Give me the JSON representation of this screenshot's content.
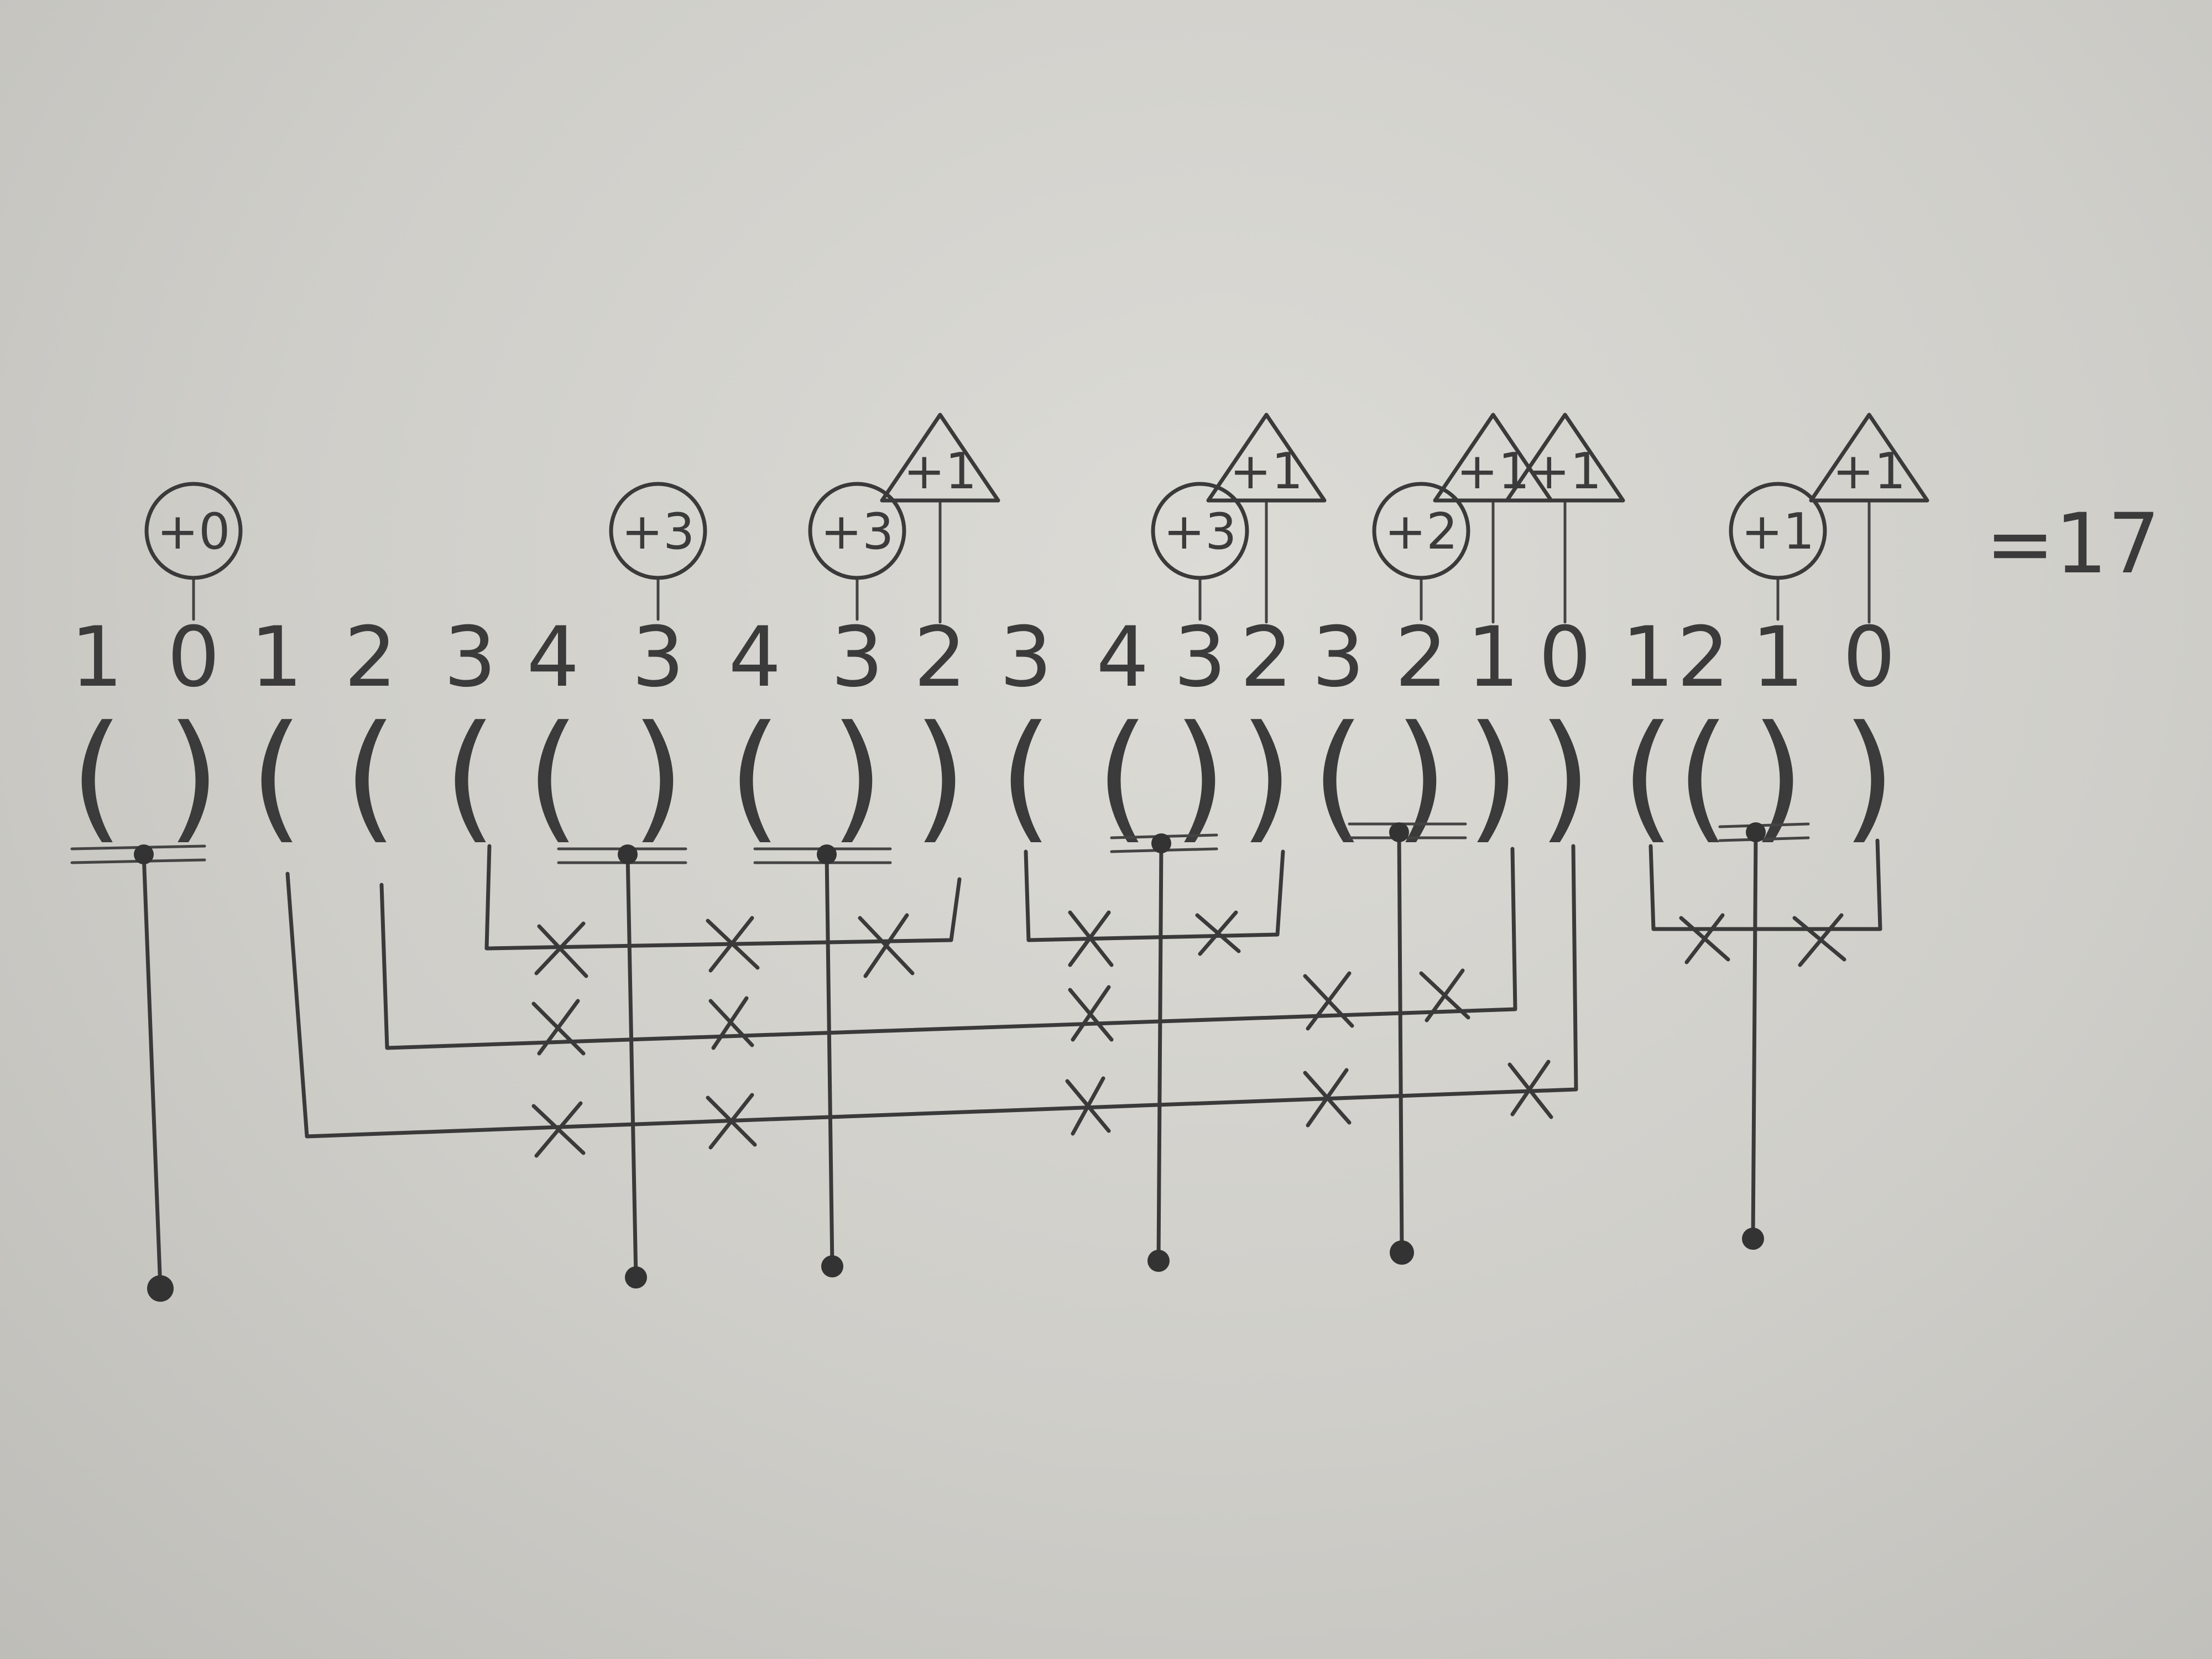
{
  "depths": [
    "1",
    "0",
    "1",
    "2",
    "3",
    "4",
    "3",
    "4",
    "3",
    "2",
    "3",
    "4",
    "3",
    "2",
    "3",
    "2",
    "1",
    "0",
    "1",
    "2",
    "1",
    "0"
  ],
  "parens": [
    "(",
    ")",
    "(",
    "(",
    "(",
    "(",
    ")",
    "(",
    ")",
    ")",
    "(",
    "(",
    ")",
    ")",
    "(",
    ")",
    ")",
    ")",
    "(",
    "(",
    ")",
    ")"
  ],
  "circle_badges": [
    {
      "label": "+0",
      "col": 1
    },
    {
      "label": "+3",
      "col": 6
    },
    {
      "label": "+3",
      "col": 8
    },
    {
      "label": "+3",
      "col": 12
    },
    {
      "label": "+2",
      "col": 15
    },
    {
      "label": "+1",
      "col": 20
    }
  ],
  "triangle_badges": [
    {
      "label": "+1",
      "col": 9
    },
    {
      "label": "+1",
      "col": 13
    },
    {
      "label": "+1",
      "col": 16
    },
    {
      "label": "+1",
      "col": 17
    },
    {
      "label": "+1",
      "col": 21
    }
  ],
  "total": "=17",
  "colors": {
    "paper": "#d3d2cd",
    "ink": "#3a3a3a"
  }
}
